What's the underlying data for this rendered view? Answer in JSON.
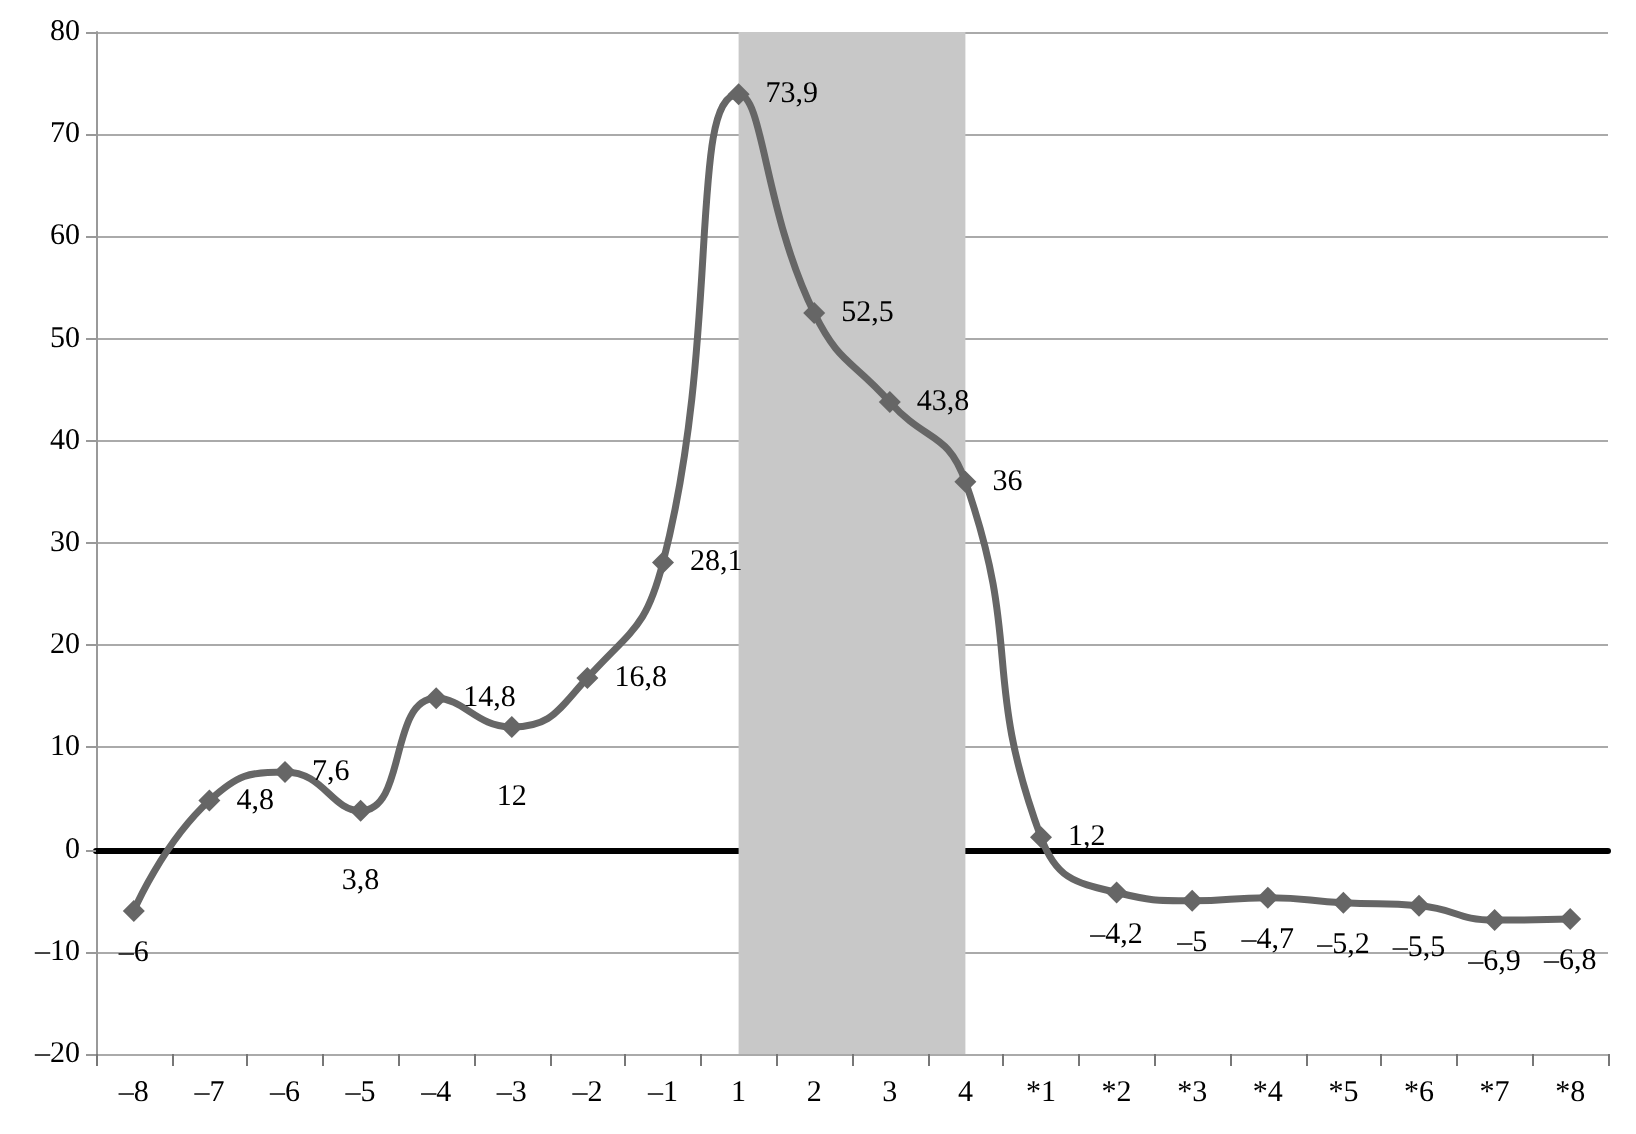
{
  "chart_data": {
    "type": "line",
    "categories": [
      "–8",
      "–7",
      "–6",
      "–5",
      "–4",
      "–3",
      "–2",
      "–1",
      "1",
      "2",
      "3",
      "4",
      "*1",
      "*2",
      "*3",
      "*4",
      "*5",
      "*6",
      "*7",
      "*8"
    ],
    "series": [
      {
        "color": "#666666",
        "values": [
          -6,
          4.8,
          7.6,
          3.8,
          14.8,
          12,
          16.8,
          28.1,
          73.9,
          52.5,
          43.8,
          36,
          1.2,
          -4.2,
          -5,
          -4.7,
          -5.2,
          -5.5,
          -6.9,
          -6.8
        ],
        "value_labels": [
          "–6",
          "4,8",
          "7,6",
          "3,8",
          "14,8",
          "12",
          "16,8",
          "28,1",
          "73,9",
          "52,5",
          "43,8",
          "36",
          "1,2",
          "–4,2",
          "–5",
          "–4,7",
          "–5,2",
          "–5,5",
          "–6,9",
          "–6,8"
        ]
      }
    ],
    "ylim": [
      -20,
      80
    ],
    "yticks": [
      {
        "value": -20,
        "label": "–20"
      },
      {
        "value": -10,
        "label": "–10"
      },
      0,
      10,
      20,
      30,
      40,
      50,
      60,
      70,
      80
    ],
    "bands": [
      {
        "axis": "x",
        "from": "1",
        "to": "4",
        "color": "#c8c8c8"
      }
    ],
    "grid": "y",
    "marker": "diamond",
    "line_style": "solid"
  }
}
